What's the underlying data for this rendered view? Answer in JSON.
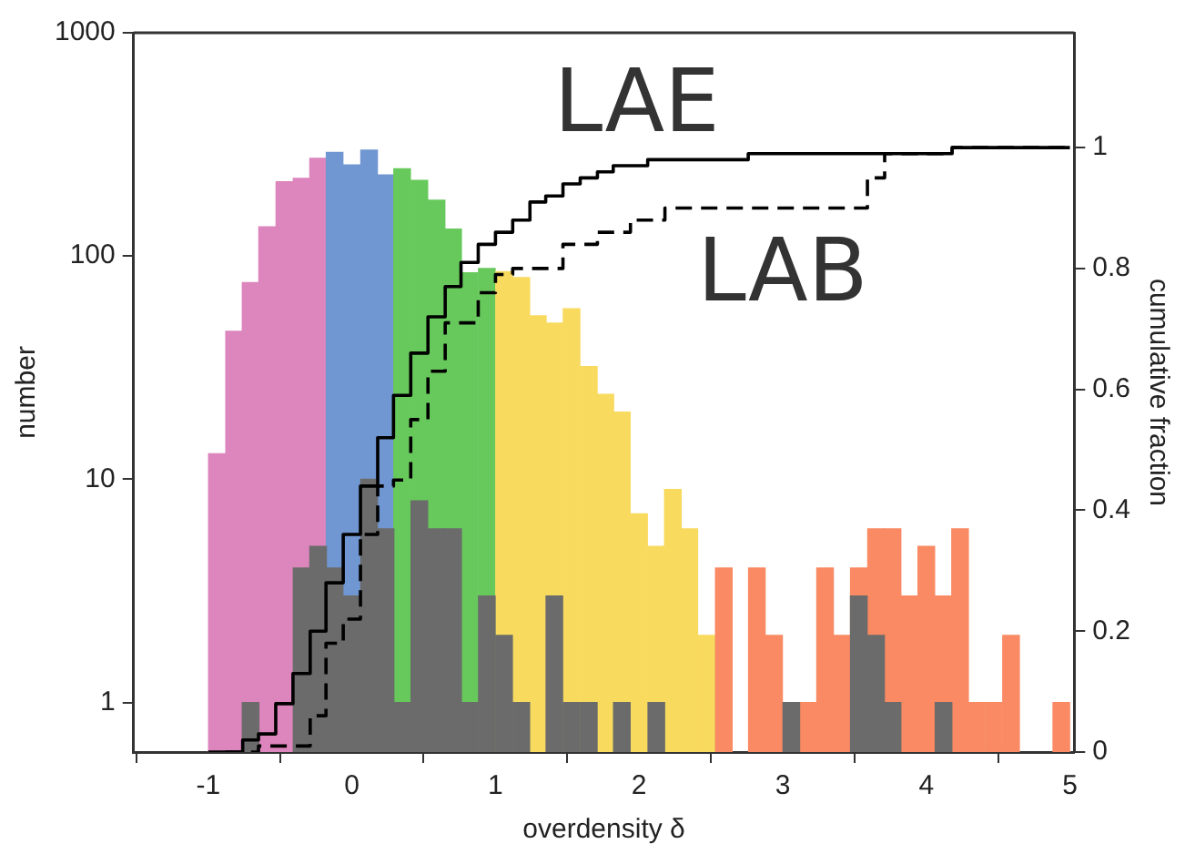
{
  "chart_data": {
    "type": "histogram",
    "xlabel": "overdensity δ",
    "ylabel": "number",
    "y2label": "cumulative fraction",
    "bins": [
      -1,
      -0.88,
      -0.76,
      -0.65,
      -0.53,
      -0.41,
      -0.29,
      -0.18,
      -0.06,
      0.06,
      0.18,
      0.29,
      0.41,
      0.53,
      0.65,
      0.76,
      0.88,
      1.0,
      1.12,
      1.24,
      1.35,
      1.47,
      1.59,
      1.71,
      1.82,
      1.94,
      2.06,
      2.18,
      2.29,
      2.41,
      2.53,
      2.65,
      2.76,
      2.88,
      3.0,
      3.12,
      3.24,
      3.35,
      3.47,
      3.59,
      3.71,
      3.82,
      3.94,
      4.06,
      4.18,
      4.29,
      4.41,
      4.53,
      4.65,
      4.88,
      5.0
    ],
    "series": [
      {
        "values": [
          13,
          46,
          76,
          135,
          215,
          223,
          274,
          291,
          256,
          298,
          231,
          246,
          218,
          178,
          132,
          84,
          88,
          85,
          80,
          54,
          50,
          58,
          32,
          24,
          20,
          7,
          5,
          9,
          6,
          2,
          4,
          null,
          4,
          2,
          null,
          1,
          4,
          2,
          4,
          6,
          6,
          3,
          5,
          3,
          6,
          1,
          1,
          2,
          null,
          1
        ],
        "colors": [
          "#dd85bd",
          "#dd85bd",
          "#dd85bd",
          "#dd85bd",
          "#dd85bd",
          "#dd85bd",
          "#dd85bd",
          "#7097d2",
          "#7097d2",
          "#7097d2",
          "#7097d2",
          "#67c95c",
          "#67c95c",
          "#67c95c",
          "#67c95c",
          "#67c95c",
          "#67c95c",
          "#f8da5e",
          "#f8da5e",
          "#f8da5e",
          "#f8da5e",
          "#f8da5e",
          "#f8da5e",
          "#f8da5e",
          "#f8da5e",
          "#f8da5e",
          "#f8da5e",
          "#f8da5e",
          "#f8da5e",
          "#f8da5e",
          "#f98a63",
          "#f98a63",
          "#f98a63",
          "#f98a63",
          "#f98a63",
          "#f98a63",
          "#f98a63",
          "#f98a63",
          "#f98a63",
          "#f98a63",
          "#f98a63",
          "#f98a63",
          "#f98a63",
          "#f98a63",
          "#f98a63",
          "#f98a63",
          "#f98a63",
          "#f98a63",
          "#f98a63",
          "#f98a63"
        ]
      },
      {
        "values": [
          null,
          null,
          1,
          null,
          null,
          4,
          5,
          4,
          3,
          10,
          6,
          1,
          8,
          6,
          6,
          1,
          3,
          2,
          1,
          null,
          3,
          1,
          1,
          null,
          1,
          null,
          1,
          null,
          null,
          null,
          null,
          null,
          null,
          null,
          1,
          null,
          null,
          null,
          3,
          2,
          1,
          null,
          null,
          1,
          null,
          null,
          null,
          null,
          null,
          null
        ],
        "color": "#6b6b6b"
      },
      {
        "type": "step",
        "axis": "y2",
        "color": "#000000",
        "line_style": "solid",
        "x": [
          -1,
          -0.88,
          -0.76,
          -0.65,
          -0.53,
          -0.41,
          -0.29,
          -0.18,
          -0.06,
          0.06,
          0.18,
          0.29,
          0.41,
          0.53,
          0.65,
          0.76,
          0.88,
          1.0,
          1.12,
          1.24,
          1.35,
          1.47,
          1.59,
          1.71,
          1.82,
          2.06,
          2.76,
          4.18,
          5.0
        ],
        "values": [
          0,
          0,
          0.02,
          0.03,
          0.08,
          0.13,
          0.2,
          0.28,
          0.36,
          0.44,
          0.52,
          0.59,
          0.66,
          0.72,
          0.77,
          0.81,
          0.84,
          0.86,
          0.88,
          0.91,
          0.92,
          0.94,
          0.95,
          0.96,
          0.97,
          0.98,
          0.99,
          1,
          1
        ]
      },
      {
        "type": "step",
        "axis": "y2",
        "color": "#000000",
        "line_style": "dashed",
        "x": [
          -0.88,
          -0.65,
          -0.29,
          -0.18,
          -0.06,
          0.06,
          0.18,
          0.29,
          0.41,
          0.53,
          0.65,
          0.88,
          1.0,
          1.12,
          1.47,
          1.71,
          1.94,
          2.18,
          3.59,
          3.71,
          4.18,
          5.0
        ],
        "values": [
          0,
          0.01,
          0.06,
          0.18,
          0.22,
          0.36,
          0.44,
          0.45,
          0.55,
          0.63,
          0.71,
          0.76,
          0.79,
          0.8,
          0.84,
          0.86,
          0.88,
          0.9,
          0.95,
          0.99,
          1,
          1
        ]
      }
    ],
    "log": "y",
    "xlim": [
      -1.52,
      5.03
    ],
    "xticks": [
      -1,
      0,
      1,
      2,
      3,
      4,
      5
    ],
    "ylim": [
      0.6,
      1000
    ],
    "yticks": [
      1,
      10,
      100,
      1000
    ],
    "y2lim": [
      0,
      1.19
    ],
    "y2ticks": [
      0,
      0.2,
      0.4,
      0.6,
      0.8,
      1
    ],
    "annotations": [
      "LAE",
      "LAB"
    ],
    "grid": false,
    "legend": false,
    "marker": "none"
  }
}
